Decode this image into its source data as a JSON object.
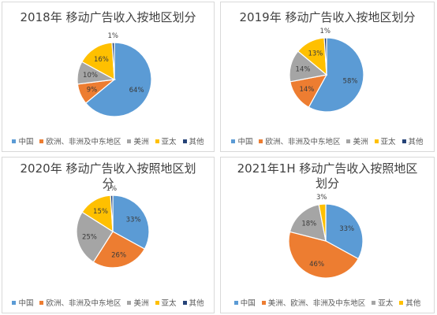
{
  "colors": {
    "china": "#5b9bd5",
    "europe": "#ed7d31",
    "americas": "#a5a5a5",
    "apac": "#ffc000",
    "other": "#264478"
  },
  "chart_data": [
    {
      "type": "pie",
      "title": "2018年 移动广告收入按地区划分",
      "categories": [
        "中国",
        "欧洲、非洲及中东地区",
        "美洲",
        "亚太",
        "其他"
      ],
      "values": [
        64,
        9,
        10,
        16,
        1
      ],
      "labels": [
        "64%",
        "9%",
        "10%",
        "16%",
        "1%"
      ],
      "legend": [
        "中国",
        "欧洲、非洲及中东地区",
        "美洲",
        "亚太",
        "其他"
      ],
      "legend_position": "bottom"
    },
    {
      "type": "pie",
      "title": "2019年 移动广告收入按地区划分",
      "categories": [
        "中国",
        "欧洲、非洲及中东地区",
        "美洲",
        "亚太",
        "其他"
      ],
      "values": [
        58,
        14,
        14,
        13,
        1
      ],
      "labels": [
        "58%",
        "14%",
        "14%",
        "13%",
        "1%"
      ],
      "legend": [
        "中国",
        "欧洲、非洲及中东地区",
        "美洲",
        "亚太",
        "其他"
      ],
      "legend_position": "bottom"
    },
    {
      "type": "pie",
      "title": "2020年 移动广告收入按照地区划\n分",
      "categories": [
        "中国",
        "欧洲、非洲及中东地区",
        "美洲",
        "亚太",
        "其他"
      ],
      "values": [
        33,
        26,
        25,
        15,
        1
      ],
      "labels": [
        "33%",
        "26%",
        "25%",
        "15%",
        "1%"
      ],
      "legend": [
        "中国",
        "欧洲、非洲及中东地区",
        "美洲",
        "亚太",
        "其他"
      ],
      "legend_position": "bottom"
    },
    {
      "type": "pie",
      "title": "2021年1H 移动广告收入按照地区\n划分",
      "categories": [
        "中国",
        "美洲、欧洲、非洲及中东地区",
        "亚太",
        "其他"
      ],
      "values": [
        33,
        46,
        18,
        3
      ],
      "labels": [
        "33%",
        "46%",
        "18%",
        "3%"
      ],
      "legend": [
        "中国",
        "美洲、欧洲、非洲及中东地区",
        "亚太",
        "其他"
      ],
      "legend_position": "bottom"
    }
  ]
}
